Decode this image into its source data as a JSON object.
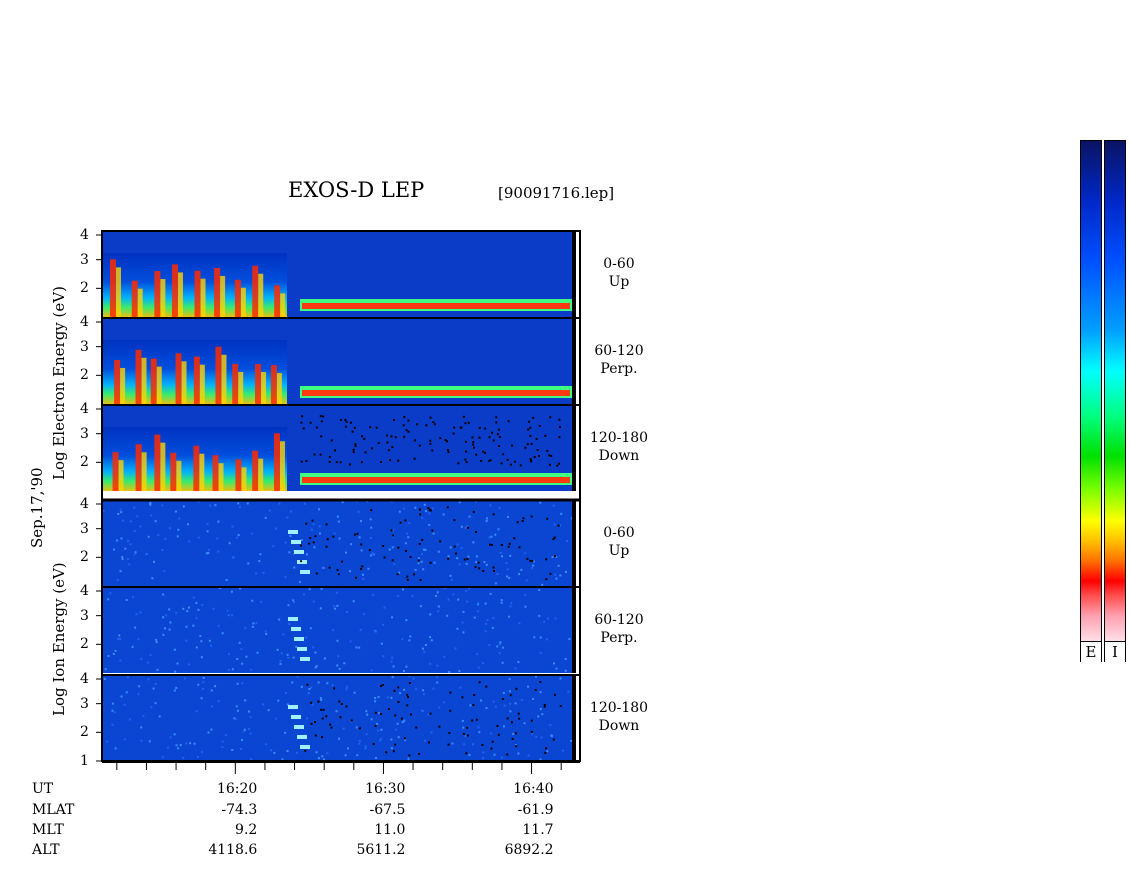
{
  "header": {
    "title": "EXOS-D LEP",
    "filename": "[90091716.lep]"
  },
  "side_labels": {
    "electron": "Log Electron Energy (eV)",
    "ion": "Log Ion Energy (eV)",
    "date": "Sep.17,'90"
  },
  "chart_data": {
    "type": "heatmap",
    "description_scale": "log10 energy (eV)",
    "panels": [
      {
        "species": "electron",
        "pitch_angle": "0-60",
        "direction": "Up",
        "ylim": [
          1,
          4
        ],
        "yticks": [
          "4",
          "3",
          "2"
        ]
      },
      {
        "species": "electron",
        "pitch_angle": "60-120",
        "direction": "Perp.",
        "ylim": [
          1,
          4
        ],
        "yticks": [
          "4",
          "3",
          "2"
        ]
      },
      {
        "species": "electron",
        "pitch_angle": "120-180",
        "direction": "Down",
        "ylim": [
          1,
          4
        ],
        "yticks": [
          "4",
          "3",
          "2"
        ]
      },
      {
        "species": "ion",
        "pitch_angle": "0-60",
        "direction": "Up",
        "ylim": [
          1,
          4
        ],
        "yticks": [
          "4",
          "3",
          "2"
        ]
      },
      {
        "species": "ion",
        "pitch_angle": "60-120",
        "direction": "Perp.",
        "ylim": [
          1,
          4
        ],
        "yticks": [
          "4",
          "3",
          "2"
        ]
      },
      {
        "species": "ion",
        "pitch_angle": "120-180",
        "direction": "Down",
        "ylim": [
          1,
          4
        ],
        "yticks": [
          "4",
          "3",
          "2",
          "1"
        ]
      }
    ],
    "x_axis": {
      "range": [
        "16:11",
        "16:43"
      ],
      "major_ticks": [
        "16:20",
        "16:30",
        "16:40"
      ]
    },
    "ephemeris": {
      "rows": [
        {
          "label": "UT",
          "values": [
            "16:20",
            "16:30",
            "16:40"
          ]
        },
        {
          "label": "MLAT",
          "values": [
            "-74.3",
            "-67.5",
            "-61.9"
          ]
        },
        {
          "label": "MLT",
          "values": [
            "9.2",
            "11.0",
            "11.7"
          ]
        },
        {
          "label": "ALT",
          "values": [
            "4118.6",
            "5611.2",
            "6892.2"
          ]
        }
      ]
    },
    "colorbars": [
      {
        "label": "E"
      },
      {
        "label": "I"
      }
    ]
  }
}
